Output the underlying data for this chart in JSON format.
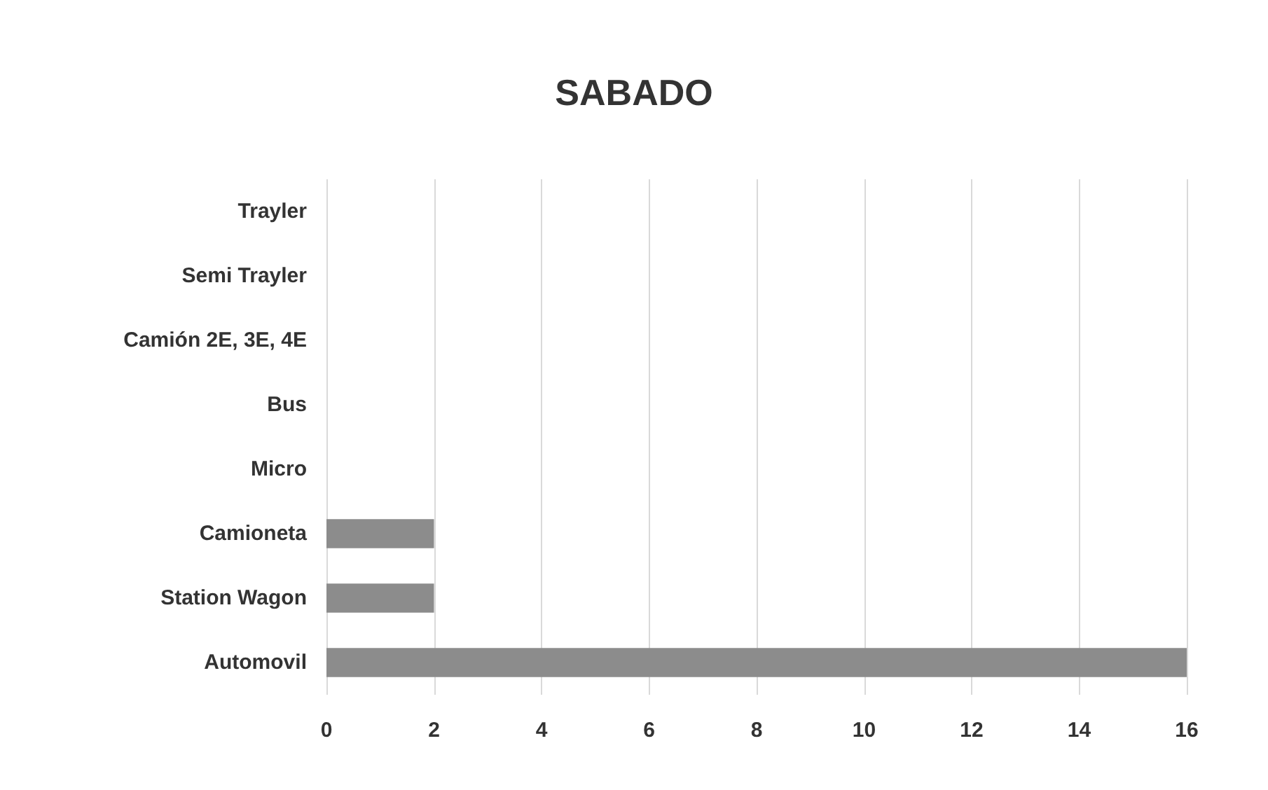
{
  "chart_data": {
    "type": "bar",
    "orientation": "horizontal",
    "title": "SABADO",
    "categories": [
      "Trayler",
      "Semi Trayler",
      "Camión 2E, 3E, 4E",
      "Bus",
      "Micro",
      "Camioneta",
      "Station Wagon",
      "Automovil"
    ],
    "values": [
      0,
      0,
      0,
      0,
      0,
      2,
      2,
      16
    ],
    "color": "#8c8c8c",
    "xlim": [
      0,
      16
    ],
    "xticks": [
      0,
      2,
      4,
      6,
      8,
      10,
      12,
      14,
      16
    ],
    "grid": "x"
  }
}
